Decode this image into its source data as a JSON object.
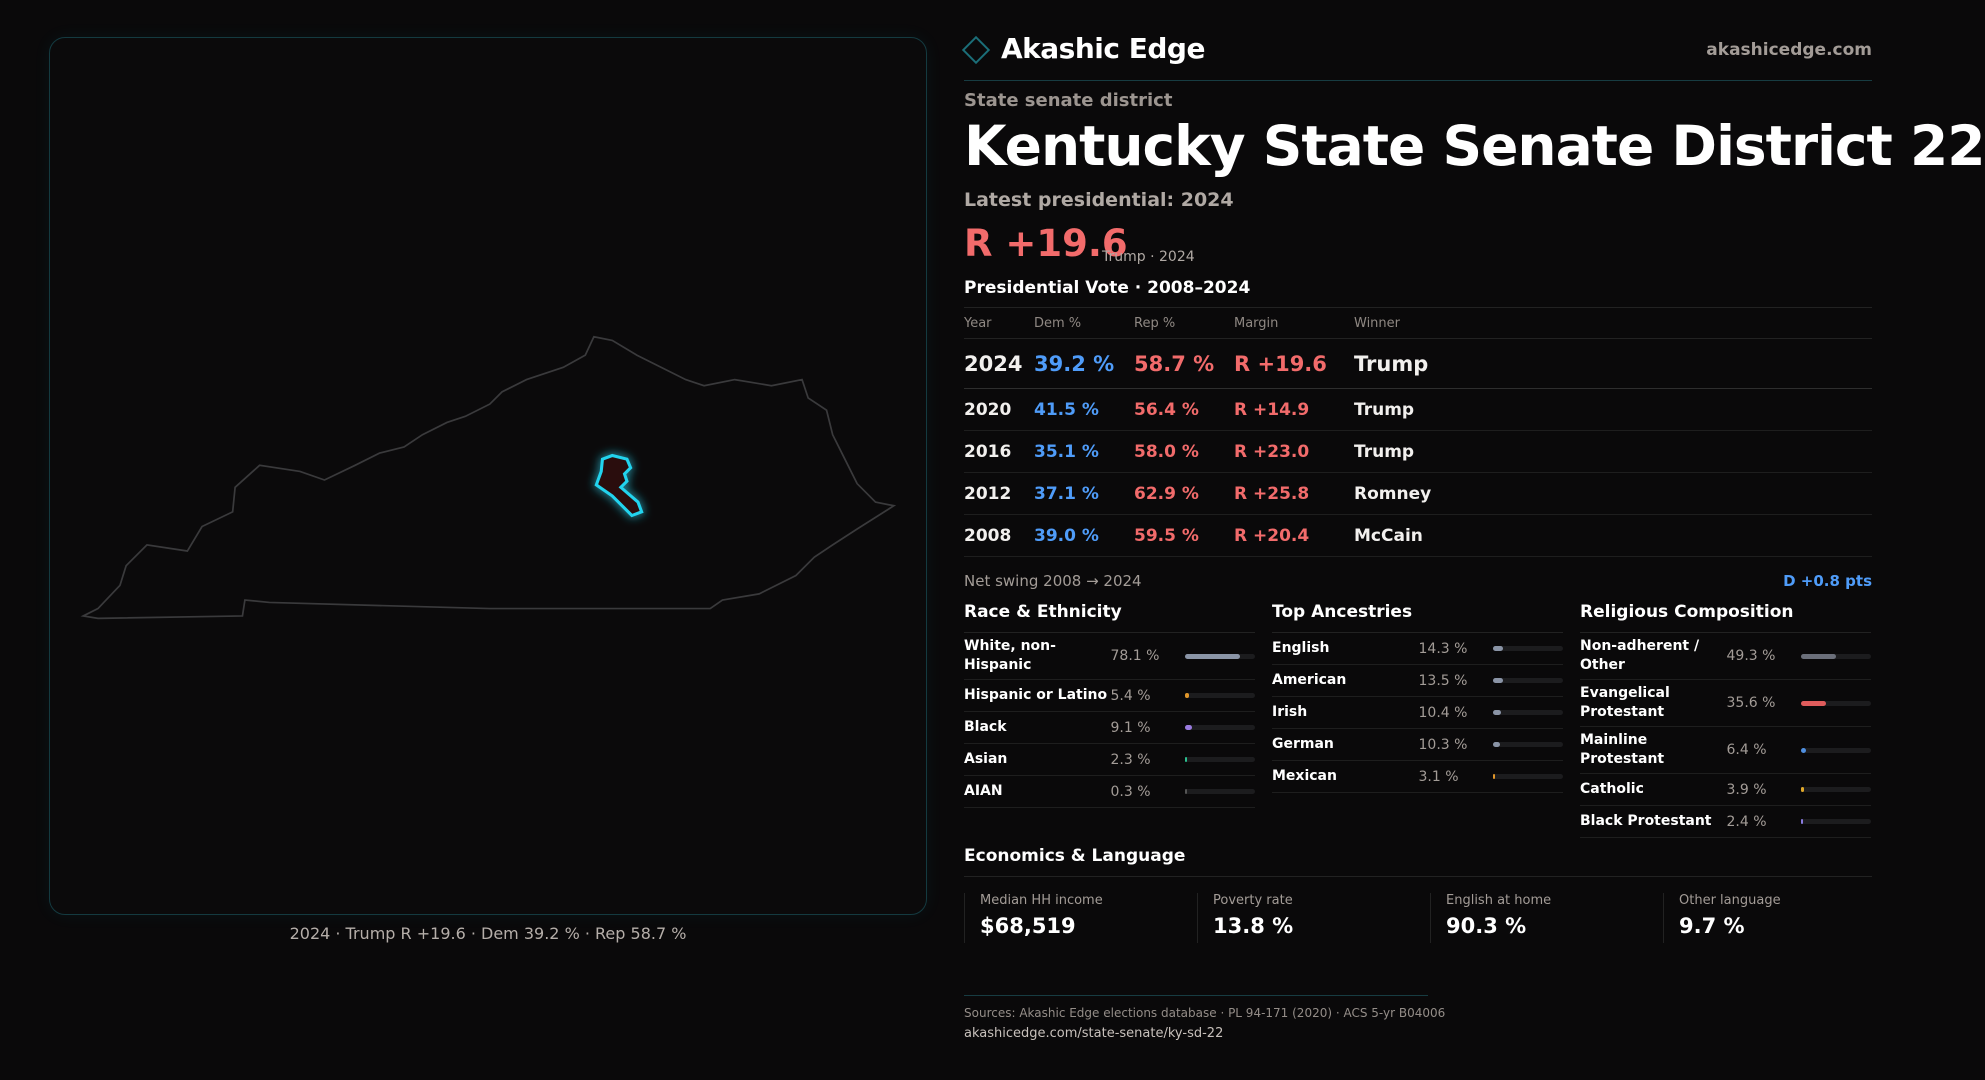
{
  "brand": {
    "name": "Akashic Edge",
    "site": "akashicedge.com"
  },
  "colors": {
    "background": "#0a090a",
    "dem": "#4f9cf9",
    "rep": "#f26b6b",
    "district_outline": "#22d3ee"
  },
  "header": {
    "kicker": "State senate district",
    "title": "Kentucky State Senate District 22",
    "latest": "Latest presidential: 2024",
    "margin": "R +19.6",
    "margin_sub": "Trump · 2024"
  },
  "map": {
    "caption": "2024 · Trump R +19.6 · Dem 39.2 % · Rep 58.7 %"
  },
  "presidential": {
    "title": "Presidential Vote · 2008–2024",
    "columns": [
      "Year",
      "Dem %",
      "Rep %",
      "Margin",
      "Winner"
    ],
    "rows": [
      {
        "year": "2024",
        "dem": "39.2 %",
        "rep": "58.7 %",
        "margin": "R +19.6",
        "winner": "Trump"
      },
      {
        "year": "2020",
        "dem": "41.5 %",
        "rep": "56.4 %",
        "margin": "R +14.9",
        "winner": "Trump"
      },
      {
        "year": "2016",
        "dem": "35.1 %",
        "rep": "58.0 %",
        "margin": "R +23.0",
        "winner": "Trump"
      },
      {
        "year": "2012",
        "dem": "37.1 %",
        "rep": "62.9 %",
        "margin": "R +25.8",
        "winner": "Romney"
      },
      {
        "year": "2008",
        "dem": "39.0 %",
        "rep": "59.5 %",
        "margin": "R +20.4",
        "winner": "McCain"
      }
    ],
    "swing_label": "Net swing 2008 → 2024",
    "swing_value": "D +0.8 pts"
  },
  "sections": [
    {
      "title": "Race & Ethnicity",
      "items": [
        {
          "label": "White, non-Hispanic",
          "pct": "78.1 %",
          "value": 78.1,
          "color": "#8a94a6"
        },
        {
          "label": "Hispanic or Latino",
          "pct": "5.4 %",
          "value": 5.4,
          "color": "#e0962a"
        },
        {
          "label": "Black",
          "pct": "9.1 %",
          "value": 9.1,
          "color": "#9a7be0"
        },
        {
          "label": "Asian",
          "pct": "2.3 %",
          "value": 2.3,
          "color": "#2bbf8f"
        },
        {
          "label": "AIAN",
          "pct": "0.3 %",
          "value": 0.3,
          "color": "#555"
        }
      ]
    },
    {
      "title": "Top Ancestries",
      "items": [
        {
          "label": "English",
          "pct": "14.3 %",
          "value": 14.3,
          "color": "#8a94a6"
        },
        {
          "label": "American",
          "pct": "13.5 %",
          "value": 13.5,
          "color": "#8a94a6"
        },
        {
          "label": "Irish",
          "pct": "10.4 %",
          "value": 10.4,
          "color": "#8a94a6"
        },
        {
          "label": "German",
          "pct": "10.3 %",
          "value": 10.3,
          "color": "#8a94a6"
        },
        {
          "label": "Mexican",
          "pct": "3.1 %",
          "value": 3.1,
          "color": "#e0962a"
        }
      ]
    },
    {
      "title": "Religious Composition",
      "items": [
        {
          "label": "Non-adherent / Other",
          "pct": "49.3 %",
          "value": 49.3,
          "color": "#6b6f7a"
        },
        {
          "label": "Evangelical Protestant",
          "pct": "35.6 %",
          "value": 35.6,
          "color": "#e05c5c"
        },
        {
          "label": "Mainline Protestant",
          "pct": "6.4 %",
          "value": 6.4,
          "color": "#4f8fe0"
        },
        {
          "label": "Catholic",
          "pct": "3.9 %",
          "value": 3.9,
          "color": "#e0a82a"
        },
        {
          "label": "Black Protestant",
          "pct": "2.4 %",
          "value": 2.4,
          "color": "#8a7be0"
        }
      ]
    }
  ],
  "economics": {
    "title": "Economics & Language",
    "cards": [
      {
        "label": "Median HH income",
        "value": "$68,519"
      },
      {
        "label": "Poverty rate",
        "value": "13.8 %"
      },
      {
        "label": "English at home",
        "value": "90.3 %"
      },
      {
        "label": "Other language",
        "value": "9.7 %"
      }
    ]
  },
  "footer": {
    "sources": "Sources: Akashic Edge elections database · PL 94-171 (2020) · ACS 5-yr B04006",
    "url": "akashicedge.com/state-senate/ky-sd-22"
  }
}
